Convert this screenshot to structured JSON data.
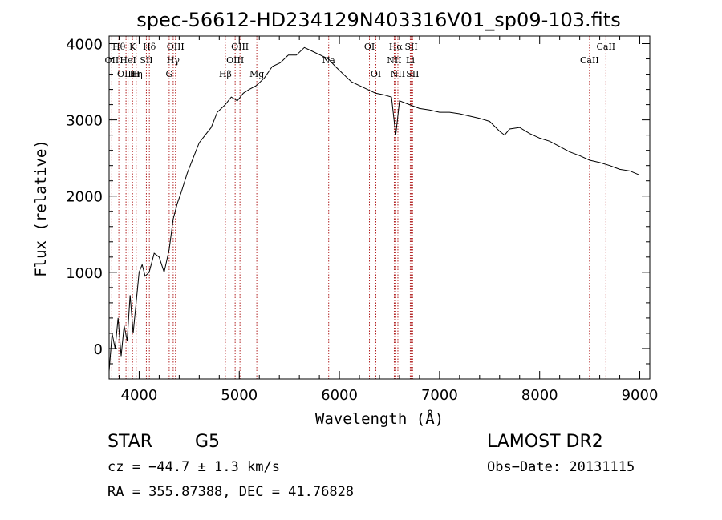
{
  "chart_data": {
    "type": "line",
    "title": "spec-56612-HD234129N403316V01_sp09-103.fits",
    "xlabel": "Wavelength (Å)",
    "ylabel": "Flux (relative)",
    "xlim": [
      3700,
      9100
    ],
    "ylim": [
      -400,
      4100
    ],
    "xticks": [
      4000,
      5000,
      6000,
      7000,
      8000,
      9000
    ],
    "yticks": [
      0,
      1000,
      2000,
      3000,
      4000
    ],
    "series": [
      {
        "x": [
          3700,
          3730,
          3760,
          3790,
          3820,
          3850,
          3880,
          3910,
          3940,
          3970,
          4000,
          4030,
          4060,
          4100,
          4150,
          4200,
          4250,
          4300,
          4340,
          4380,
          4420,
          4480,
          4540,
          4600,
          4660,
          4720,
          4780,
          4860,
          4920,
          4980,
          5040,
          5100,
          5170,
          5250,
          5330,
          5410,
          5490,
          5570,
          5650,
          5730,
          5810,
          5890,
          5960,
          6040,
          6120,
          6200,
          6280,
          6360,
          6440,
          6520,
          6563,
          6600,
          6700,
          6800,
          6900,
          7000,
          7100,
          7200,
          7300,
          7400,
          7500,
          7600,
          7650,
          7700,
          7800,
          7900,
          8000,
          8100,
          8200,
          8300,
          8400,
          8500,
          8600,
          8700,
          8800,
          8900,
          8990
        ],
        "y": [
          -300,
          200,
          0,
          400,
          -100,
          300,
          100,
          700,
          200,
          600,
          1000,
          1100,
          950,
          1000,
          1250,
          1200,
          1000,
          1300,
          1700,
          1900,
          2050,
          2300,
          2500,
          2700,
          2800,
          2900,
          3100,
          3200,
          3300,
          3250,
          3350,
          3400,
          3450,
          3550,
          3700,
          3750,
          3850,
          3850,
          3950,
          3900,
          3850,
          3800,
          3700,
          3600,
          3500,
          3450,
          3400,
          3350,
          3330,
          3300,
          2800,
          3250,
          3200,
          3150,
          3130,
          3100,
          3100,
          3080,
          3050,
          3020,
          2980,
          2850,
          2800,
          2880,
          2900,
          2820,
          2760,
          2720,
          2650,
          2580,
          2530,
          2470,
          2440,
          2400,
          2350,
          2330,
          2280
        ]
      }
    ],
    "lines": [
      {
        "x": 3797,
        "label": "Hθ",
        "row": 1
      },
      {
        "x": 3727,
        "label": "OII",
        "row": 2
      },
      {
        "x": 3869,
        "label": "OIII",
        "row": 3
      },
      {
        "x": 3889,
        "label": "HeI",
        "row": 2
      },
      {
        "x": 3934,
        "label": "K",
        "row": 1
      },
      {
        "x": 3969,
        "label": "H",
        "row": 3
      },
      {
        "x": 3970,
        "label": "Hη",
        "row": 3
      },
      {
        "x": 4072,
        "label": "SII",
        "row": 2
      },
      {
        "x": 4102,
        "label": "Hδ",
        "row": 1
      },
      {
        "x": 4300,
        "label": "G",
        "row": 3
      },
      {
        "x": 4340,
        "label": "Hγ",
        "row": 2
      },
      {
        "x": 4363,
        "label": "OIII",
        "row": 1
      },
      {
        "x": 4861,
        "label": "Hβ",
        "row": 3
      },
      {
        "x": 4959,
        "label": "OIII",
        "row": 2
      },
      {
        "x": 5007,
        "label": "OIII",
        "row": 1
      },
      {
        "x": 5175,
        "label": "Mg",
        "row": 3
      },
      {
        "x": 5893,
        "label": "Na",
        "row": 2
      },
      {
        "x": 6300,
        "label": "OI",
        "row": 1
      },
      {
        "x": 6364,
        "label": "OI",
        "row": 3
      },
      {
        "x": 6548,
        "label": "NII",
        "row": 2
      },
      {
        "x": 6563,
        "label": "Hα",
        "row": 1
      },
      {
        "x": 6584,
        "label": "NII",
        "row": 3
      },
      {
        "x": 6708,
        "label": "Li",
        "row": 2
      },
      {
        "x": 6717,
        "label": "SII",
        "row": 1
      },
      {
        "x": 6731,
        "label": "SII",
        "row": 3
      },
      {
        "x": 8498,
        "label": "CaII",
        "row": 2
      },
      {
        "x": 8662,
        "label": "CaII",
        "row": 1
      }
    ]
  },
  "info": {
    "class": "STAR",
    "subclass": "G5",
    "survey": "LAMOST DR2",
    "cz": "cz = −44.7 ± 1.3 km/s",
    "obs_date": "Obs−Date: 20131115",
    "coords": "RA = 355.87388, DEC =  41.76828"
  }
}
